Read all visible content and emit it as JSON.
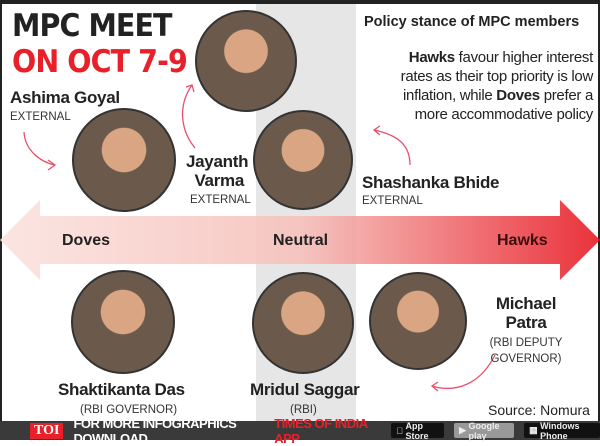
{
  "title": {
    "line1": "MPC MEET",
    "line2": "ON OCT 7-9"
  },
  "stance": {
    "heading": "Policy stance of MPC members",
    "desc_hawks": "Hawks",
    "desc_part1": " favour higher interest rates as their top priority is low inflation, while ",
    "desc_doves": "Doves",
    "desc_part2": " prefer a more accommodative policy"
  },
  "axis": {
    "left": "Doves",
    "center": "Neutral",
    "right": "Hawks"
  },
  "members": [
    {
      "name": "Ashima Goyal",
      "role": "EXTERNAL",
      "stance": "Doves"
    },
    {
      "name": "Jayanth Varma",
      "role": "EXTERNAL",
      "stance": "Neutral-Doves"
    },
    {
      "name": "Shashanka Bhide",
      "role": "EXTERNAL",
      "stance": "Neutral"
    },
    {
      "name": "Shaktikanta Das",
      "role": "(RBI GOVERNOR)",
      "stance": "Doves"
    },
    {
      "name": "Mridul Saggar",
      "role": "(RBI)",
      "stance": "Neutral"
    },
    {
      "name": "Michael Patra",
      "role": "(RBI DEPUTY GOVERNOR)",
      "stance": "Hawks"
    }
  ],
  "varma_l1": "Jayanth",
  "varma_l2": "Varma",
  "patra_l1": "Michael",
  "patra_l2": "Patra",
  "patra_r1": "(RBI DEPUTY",
  "patra_r2": "GOVERNOR)",
  "source": "Source: Nomura",
  "footer": {
    "logo": "TOI",
    "text": "FOR MORE  INFOGRAPHICS DOWNLOAD",
    "app": "TIMES OF INDIA  APP",
    "stores": [
      "App Store",
      "Google play",
      "Windows Phone"
    ]
  },
  "colors": {
    "accent": "#e8202a",
    "dark": "#222222",
    "band": "#e6e6e6"
  }
}
